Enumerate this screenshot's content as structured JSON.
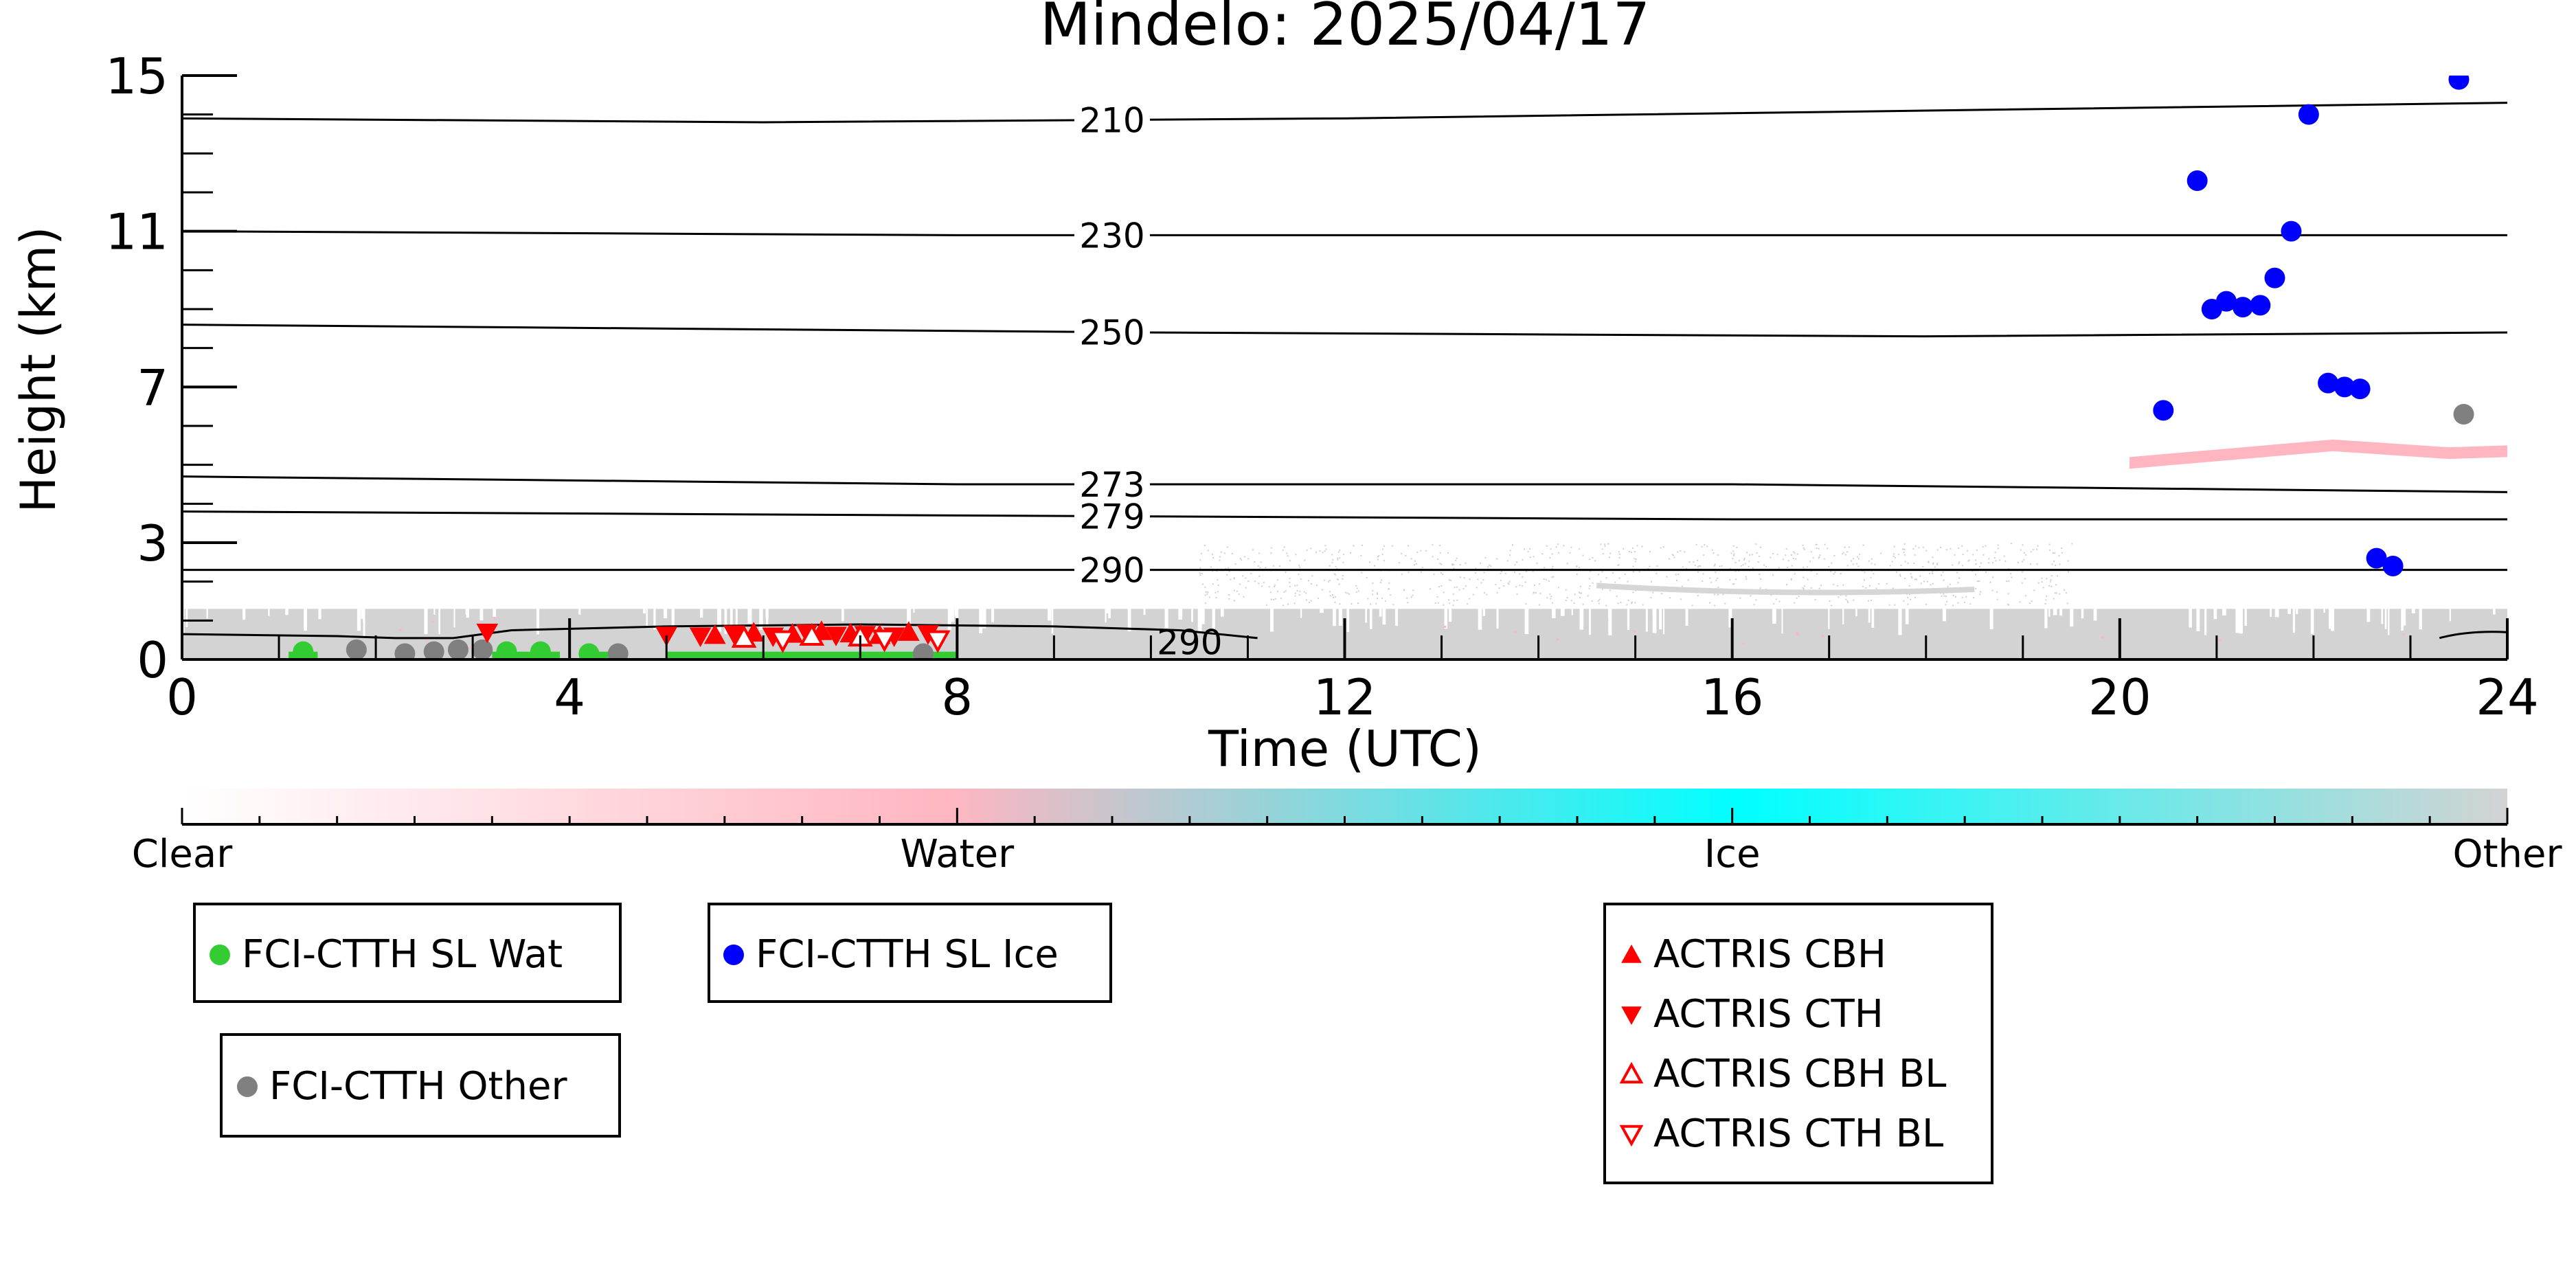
{
  "chart_data": {
    "type": "scatter",
    "title": "Mindelo: 2025/04/17",
    "xlabel": "Time (UTC)",
    "ylabel": "Height (km)",
    "xlim": [
      0,
      24
    ],
    "ylim": [
      0,
      15
    ],
    "x_ticks": [
      "0",
      "4",
      "8",
      "12",
      "16",
      "20",
      "24"
    ],
    "y_ticks": [
      "0",
      "3",
      "7",
      "11",
      "15"
    ],
    "y_tick_values": [
      0,
      3,
      7,
      11,
      15
    ],
    "grid": false,
    "temperature_contours": [
      {
        "label": "210",
        "points": [
          [
            0,
            13.9
          ],
          [
            6,
            13.8
          ],
          [
            12,
            13.9
          ],
          [
            18,
            14.1
          ],
          [
            24,
            14.3
          ]
        ]
      },
      {
        "label": "230",
        "points": [
          [
            0,
            11.0
          ],
          [
            8,
            10.9
          ],
          [
            16,
            10.9
          ],
          [
            24,
            10.9
          ]
        ]
      },
      {
        "label": "250",
        "points": [
          [
            0,
            8.6
          ],
          [
            10,
            8.4
          ],
          [
            18,
            8.3
          ],
          [
            24,
            8.4
          ]
        ]
      },
      {
        "label": "273",
        "points": [
          [
            0,
            4.7
          ],
          [
            8,
            4.5
          ],
          [
            16,
            4.5
          ],
          [
            24,
            4.3
          ]
        ]
      },
      {
        "label": "279",
        "points": [
          [
            0,
            3.8
          ],
          [
            8,
            3.7
          ],
          [
            16,
            3.6
          ],
          [
            24,
            3.6
          ]
        ]
      },
      {
        "label": "290",
        "points": [
          [
            0,
            2.3
          ],
          [
            12,
            2.3
          ],
          [
            24,
            2.3
          ]
        ]
      }
    ],
    "contour_label_x": 9.6,
    "low_contour": {
      "label": "290",
      "points": [
        [
          0,
          0.65
        ],
        [
          1.6,
          0.6
        ],
        [
          2.2,
          0.55
        ],
        [
          2.8,
          0.55
        ],
        [
          3.4,
          0.75
        ],
        [
          5,
          0.85
        ],
        [
          7,
          0.9
        ],
        [
          9,
          0.85
        ],
        [
          10.3,
          0.75
        ],
        [
          11.1,
          0.55
        ]
      ],
      "label_x": 10.4,
      "label_y": 0.45
    },
    "cloud_colorbar": {
      "labels": [
        "Clear",
        "Water",
        "Ice",
        "Other"
      ],
      "colors": [
        "#ffffff",
        "#ffb6c1",
        "#00ffff",
        "#d3d3d3"
      ]
    },
    "series": [
      {
        "name": "FCI-CTTH SL Wat",
        "color": "#33cc33",
        "marker": "circle",
        "x": [
          1.25,
          3.35,
          3.7,
          4.2
        ],
        "y": [
          0.2,
          0.2,
          0.2,
          0.15
        ]
      },
      {
        "name": "FCI-CTTH Other",
        "color": "#808080",
        "marker": "circle",
        "x": [
          1.8,
          2.3,
          2.6,
          2.85,
          3.1,
          4.5,
          7.65,
          23.55
        ],
        "y": [
          0.25,
          0.15,
          0.2,
          0.25,
          0.25,
          0.15,
          0.15,
          6.3
        ]
      },
      {
        "name": "FCI-CTTH SL Ice",
        "color": "#0000ff",
        "marker": "circle",
        "x": [
          20.45,
          20.8,
          20.95,
          21.1,
          21.27,
          21.45,
          21.6,
          21.77,
          21.95,
          22.15,
          22.32,
          22.48,
          22.65,
          22.82,
          23.5
        ],
        "y": [
          6.4,
          12.3,
          9.0,
          9.2,
          9.05,
          9.1,
          9.8,
          11.0,
          14.0,
          7.1,
          7.0,
          6.95,
          2.6,
          2.4,
          14.9
        ]
      },
      {
        "name": "ACTRIS CBH",
        "color": "#ff0000",
        "marker": "triangle-up",
        "x": [
          5.5,
          5.9,
          6.3,
          6.6,
          6.9,
          7.2,
          7.5
        ],
        "y": [
          0.62,
          0.68,
          0.65,
          0.72,
          0.66,
          0.62,
          0.7
        ]
      },
      {
        "name": "ACTRIS CTH",
        "color": "#ff0000",
        "marker": "triangle-down",
        "x": [
          3.15,
          5.0,
          5.35,
          5.7,
          6.1,
          6.45,
          6.75,
          7.05,
          7.35,
          7.7
        ],
        "y": [
          0.7,
          0.62,
          0.6,
          0.65,
          0.6,
          0.68,
          0.62,
          0.64,
          0.6,
          0.66
        ]
      },
      {
        "name": "ACTRIS CBH BL",
        "color": "#ff0000",
        "marker": "triangle-up-open",
        "x": [
          5.8,
          6.5,
          7.0
        ],
        "y": [
          0.55,
          0.6,
          0.58
        ]
      },
      {
        "name": "ACTRIS CTH BL",
        "color": "#ff0000",
        "marker": "triangle-down-open",
        "x": [
          6.2,
          7.25,
          7.8
        ],
        "y": [
          0.5,
          0.52,
          0.5
        ]
      }
    ],
    "water_bar_spans": [
      [
        1.1,
        1.4
      ],
      [
        3.2,
        3.9
      ],
      [
        4.1,
        4.4
      ],
      [
        5.0,
        8.0
      ]
    ],
    "cloud_mask": {
      "bl_top": 1.3,
      "mid_band": {
        "x": [
          10.5,
          19.5
        ],
        "y": [
          1.4,
          3.0
        ]
      },
      "pink_band": {
        "x": [
          20.1,
          24
        ],
        "y": [
          5.1,
          5.7
        ]
      }
    },
    "legend_placement": "below"
  }
}
